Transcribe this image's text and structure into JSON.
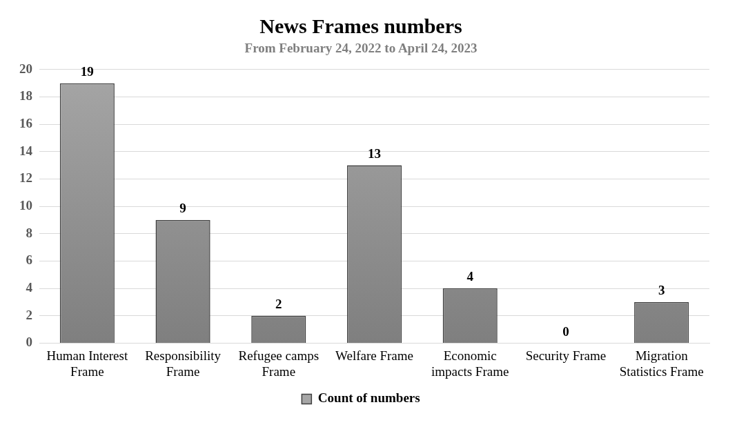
{
  "chart_data": {
    "type": "bar",
    "title": "News Frames numbers",
    "subtitle": "From February 24, 2022 to April 24, 2023",
    "categories": [
      "Human Interest Frame",
      "Responsibility Frame",
      "Refugee camps Frame",
      "Welfare Frame",
      "Economic impacts Frame",
      "Security Frame",
      "Migration Statistics Frame"
    ],
    "series": [
      {
        "name": "Count of numbers",
        "color": "#a6a6a6",
        "values": [
          19,
          9,
          2,
          13,
          4,
          0,
          3
        ]
      }
    ],
    "ylim": [
      0,
      20
    ],
    "yticks": [
      0,
      2,
      4,
      6,
      8,
      10,
      12,
      14,
      16,
      18,
      20
    ],
    "grid": "y",
    "legend": "bottom",
    "data_labels": true
  }
}
